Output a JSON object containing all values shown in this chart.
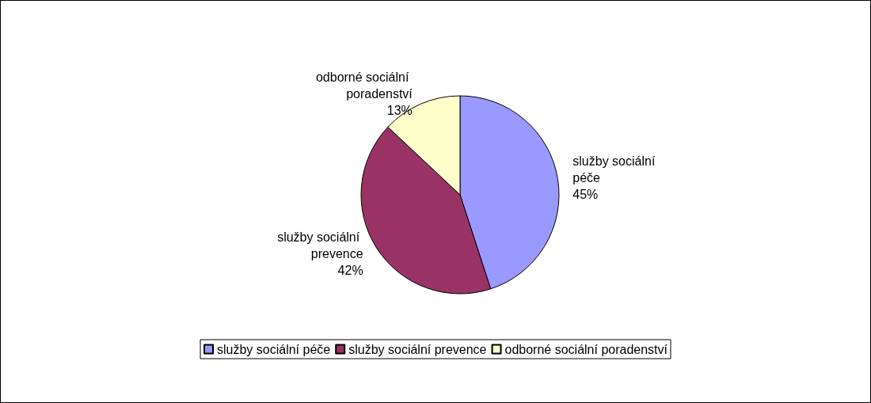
{
  "chart_data": {
    "type": "pie",
    "categories": [
      "služby sociální péče",
      "služby sociální prevence",
      "odborné sociální poradenství"
    ],
    "values": [
      45,
      42,
      13
    ],
    "value_labels": [
      "45%",
      "42%",
      "13%"
    ],
    "colors": [
      "#9999ff",
      "#993366",
      "#ffffcc"
    ],
    "legend": "bottom"
  }
}
